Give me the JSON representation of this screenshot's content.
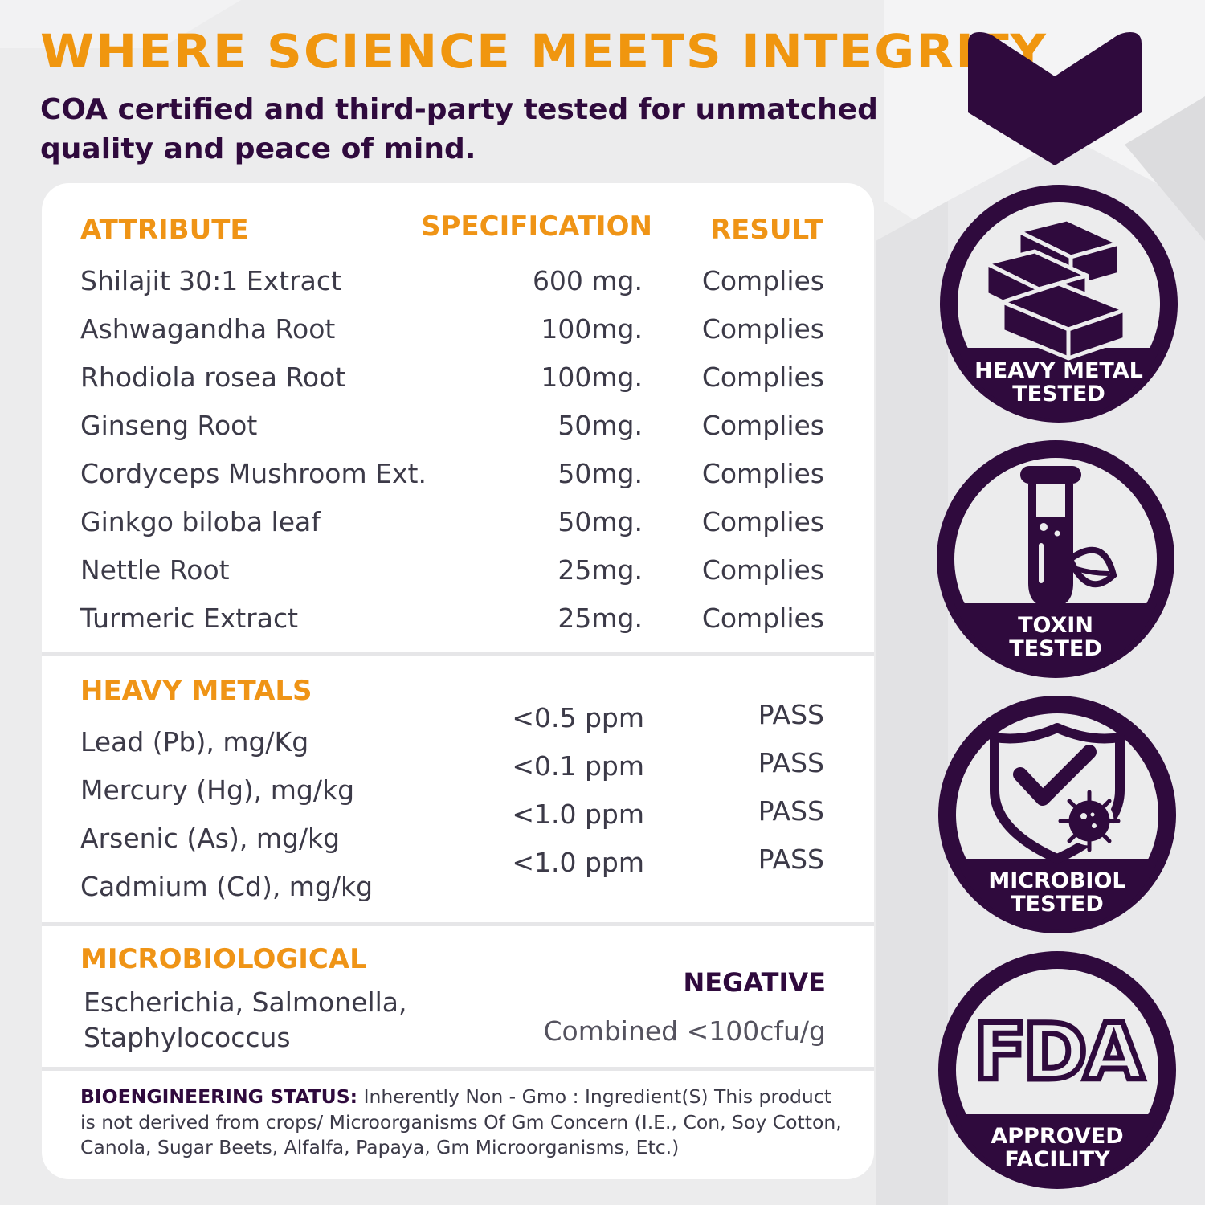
{
  "headline": "WHERE SCIENCE MEETS INTEGRITY",
  "subheadline": "COA certified and third-party tested for unmatched quality and peace of mind.",
  "colors": {
    "accent": "#f0960f",
    "brand_purple": "#2f0a3d",
    "text": "#3c3a48"
  },
  "table": {
    "headers": {
      "attribute": "ATTRIBUTE",
      "specification": "SPECIFICATION",
      "result": "RESULT"
    },
    "rows": [
      {
        "attribute": "Shilajit 30:1 Extract",
        "specification": "600 mg.",
        "result": "Complies"
      },
      {
        "attribute": "Ashwagandha Root",
        "specification": "100mg.",
        "result": "Complies"
      },
      {
        "attribute": "Rhodiola rosea Root",
        "specification": "100mg.",
        "result": "Complies"
      },
      {
        "attribute": "Ginseng Root",
        "specification": "50mg.",
        "result": "Complies"
      },
      {
        "attribute": "Cordyceps Mushroom Ext.",
        "specification": "50mg.",
        "result": "Complies"
      },
      {
        "attribute": "Ginkgo biloba leaf",
        "specification": "50mg.",
        "result": "Complies"
      },
      {
        "attribute": "Nettle Root",
        "specification": "25mg.",
        "result": "Complies"
      },
      {
        "attribute": "Turmeric Extract",
        "specification": "25mg.",
        "result": "Complies"
      }
    ]
  },
  "heavy_metals": {
    "title": "HEAVY METALS",
    "rows": [
      {
        "attribute": "Lead (Pb), mg/Kg",
        "specification": "<0.5 ppm",
        "result": "PASS"
      },
      {
        "attribute": "Mercury (Hg), mg/kg",
        "specification": "<0.1 ppm",
        "result": "PASS"
      },
      {
        "attribute": "Arsenic (As), mg/kg",
        "specification": "<1.0 ppm",
        "result": "PASS"
      },
      {
        "attribute": "Cadmium (Cd), mg/kg",
        "specification": "<1.0 ppm",
        "result": "PASS"
      }
    ]
  },
  "microbiological": {
    "title": "MICROBIOLOGICAL",
    "organisms_line1": "Escherichia, Salmonella,",
    "organisms_line2": "Staphylococcus",
    "result": "NEGATIVE",
    "limit": "Combined <100cfu/g"
  },
  "bioengineering": {
    "label": "BIOENGINEERING STATUS:",
    "text": "Inherently Non - Gmo : Ingredient(S) This product is not derived from crops/ Microorganisms Of Gm Concern (I.E., Con, Soy Cotton, Canola, Sugar Beets, Alfalfa, Papaya, Gm Microorganisms, Etc.)"
  },
  "badges": [
    {
      "icon": "gold-bars-icon",
      "line1": "HEAVY METAL",
      "line2": "TESTED"
    },
    {
      "icon": "test-tube-leaf-icon",
      "line1": "TOXIN",
      "line2": "TESTED"
    },
    {
      "icon": "shield-check-microbe-icon",
      "line1": "MICROBIOL",
      "line2": "TESTED"
    },
    {
      "icon": "fda-icon",
      "line1": "APPROVED",
      "line2": "FACILITY",
      "logo_text": "FDA"
    }
  ]
}
